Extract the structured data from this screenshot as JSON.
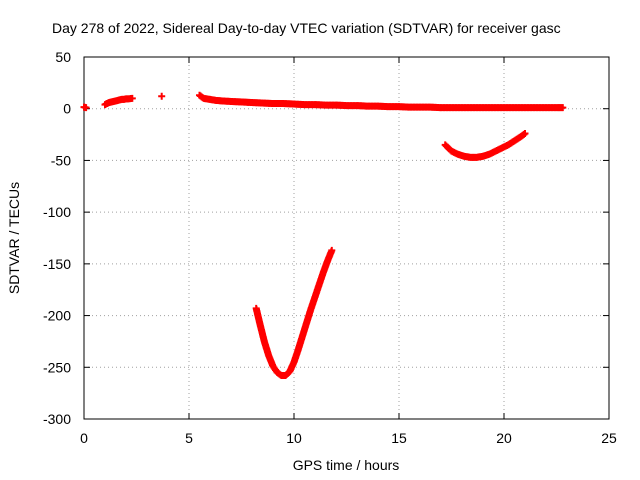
{
  "chart_data": {
    "type": "scatter",
    "title": "Day 278 of 2022, Sidereal Day-to-day VTEC variation (SDTVAR) for receiver gasc",
    "xlabel": "GPS time / hours",
    "ylabel": "SDTVAR / TECUs",
    "xlim": [
      0,
      25
    ],
    "ylim": [
      -300,
      50
    ],
    "xticks": [
      "0",
      "5",
      "10",
      "15",
      "20",
      "25"
    ],
    "yticks": [
      "50",
      "0",
      "-50",
      "-100",
      "-150",
      "-200",
      "-250",
      "-300"
    ],
    "grid": true,
    "marker": "plus",
    "color": "#ff0000",
    "series": [
      {
        "name": "start-point",
        "x": [
          0.0,
          0.1
        ],
        "y": [
          1.5,
          1.0
        ]
      },
      {
        "name": "early-arc",
        "x": [
          1.0,
          1.1,
          1.2,
          1.3,
          1.4,
          1.5,
          1.6,
          1.7,
          1.8,
          1.9,
          2.0,
          2.1,
          2.3
        ],
        "y": [
          4,
          5,
          6,
          6.5,
          7,
          7.5,
          8,
          8.5,
          9,
          9,
          9.5,
          9.5,
          10
        ]
      },
      {
        "name": "isolated-point",
        "x": [
          3.7
        ],
        "y": [
          12
        ]
      },
      {
        "name": "main-flat-arc",
        "x": [
          5.5,
          5.7,
          6.0,
          6.3,
          6.6,
          7.0,
          7.5,
          8.0,
          8.5,
          9.0,
          9.5,
          10.0,
          10.5,
          11.0,
          11.5,
          12.0,
          12.5,
          13.0,
          13.5,
          14.0,
          14.5,
          15.0,
          15.5,
          16.0,
          16.5,
          17.0,
          17.5,
          18.0,
          18.5,
          19.0,
          19.5,
          20.0,
          20.5,
          21.0,
          21.5,
          22.0,
          22.5,
          22.8
        ],
        "y": [
          13,
          10,
          9,
          8,
          7.5,
          7,
          6.5,
          6,
          5.5,
          5,
          5,
          4.5,
          4,
          4,
          3.5,
          3.5,
          3,
          3,
          2.5,
          2.5,
          2,
          2,
          1.5,
          1.5,
          1.5,
          1,
          1,
          1,
          1,
          1,
          1,
          1,
          1,
          1,
          1,
          1,
          1,
          1
        ]
      },
      {
        "name": "late-arc",
        "x": [
          17.2,
          17.5,
          17.8,
          18.1,
          18.4,
          18.7,
          19.0,
          19.3,
          19.6,
          19.9,
          20.2,
          20.5,
          20.8,
          21.0
        ],
        "y": [
          -35,
          -41,
          -44,
          -46,
          -47,
          -47,
          -46,
          -44,
          -41,
          -38,
          -35,
          -31,
          -27,
          -24
        ]
      },
      {
        "name": "deep-arc",
        "x": [
          8.2,
          8.4,
          8.6,
          8.8,
          9.0,
          9.2,
          9.4,
          9.6,
          9.8,
          10.0,
          10.2,
          10.4,
          10.6,
          10.8,
          11.0,
          11.2,
          11.4,
          11.6,
          11.8
        ],
        "y": [
          -193,
          -210,
          -226,
          -239,
          -249,
          -255,
          -258,
          -258,
          -254,
          -245,
          -233,
          -220,
          -207,
          -194,
          -182,
          -170,
          -158,
          -147,
          -137
        ]
      }
    ]
  }
}
